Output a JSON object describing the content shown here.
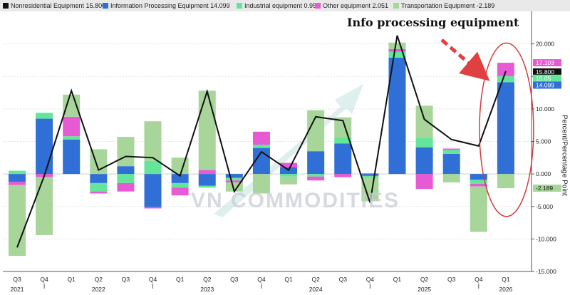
{
  "chart_data": {
    "type": "bar",
    "stacked": true,
    "annotation": "Info processing equipment",
    "watermark": "VN COMMODITIES",
    "ylabel": "Percent/Percentage Point",
    "ylim": [
      -15,
      25
    ],
    "yticks": [
      -15,
      -10,
      -5,
      0,
      5,
      10,
      15,
      20
    ],
    "ytick_labels": [
      "-15.000",
      "-10.000",
      "-5.000",
      "0.000",
      "5.000",
      "10.000",
      "15.000",
      "20.000"
    ],
    "grid": true,
    "legend_position": "top",
    "quarter_labels": [
      "Q3",
      "Q4",
      "Q1",
      "Q2",
      "Q3",
      "Q4",
      "Q1",
      "Q2",
      "Q3",
      "Q4",
      "Q1",
      "Q2",
      "Q3",
      "Q4",
      "Q1",
      "Q2",
      "Q3",
      "Q4",
      "Q1"
    ],
    "year_labels": [
      {
        "label": "2021",
        "index": 0
      },
      {
        "label": "2022",
        "index": 3
      },
      {
        "label": "2023",
        "index": 7
      },
      {
        "label": "2024",
        "index": 11
      },
      {
        "label": "2025",
        "index": 15
      },
      {
        "label": "2026",
        "index": 18
      }
    ],
    "legend": [
      {
        "name": "Nonresidential Equipment",
        "value": "15.800",
        "color": "#111111"
      },
      {
        "name": "Information Processing Equipment",
        "value": "14.099",
        "color": "#2f6fd6"
      },
      {
        "name": "Industrial equipment",
        "value": "0.953",
        "color": "#63e59a"
      },
      {
        "name": "Other equipment",
        "value": "2.051",
        "color": "#e65ad3"
      },
      {
        "name": "Transportation Equipment",
        "value": "-2.189",
        "color": "#a7d59a"
      }
    ],
    "line": {
      "name": "Nonresidential Equipment",
      "values": [
        -11.3,
        -0.3,
        12.8,
        0.6,
        2.7,
        2.5,
        -0.3,
        12.7,
        -2.7,
        3.4,
        0.6,
        8.8,
        8.2,
        -4.4,
        21.3,
        8.4,
        5.3,
        4.3,
        15.8
      ]
    },
    "bar_series": [
      {
        "name": "Information Processing Equipment",
        "color": "#2f6fd6",
        "values": [
          -1.2,
          8.5,
          5.3,
          -1.4,
          1.2,
          -5.1,
          -1.4,
          -1.8,
          -0.6,
          4.0,
          1.0,
          3.5,
          4.7,
          -0.3,
          17.9,
          4.1,
          3.1,
          -0.9,
          14.1
        ]
      },
      {
        "name": "Industrial equipment",
        "color": "#63e59a",
        "values": [
          0.5,
          0.9,
          0.5,
          -1.3,
          -1.4,
          2.0,
          -0.7,
          -0.3,
          -0.4,
          0.5,
          -0.4,
          -0.4,
          0.9,
          -0.3,
          0.9,
          1.4,
          0.6,
          -0.6,
          0.95
        ]
      },
      {
        "name": "Other equipment",
        "color": "#e65ad3",
        "values": [
          -0.5,
          -0.5,
          3.0,
          -0.3,
          -1.3,
          -0.2,
          -1.2,
          0.6,
          -0.3,
          2.0,
          0.7,
          -0.6,
          -0.5,
          0.1,
          0.4,
          -2.3,
          0.2,
          -0.4,
          2.05
        ]
      },
      {
        "name": "Transportation Equipment",
        "color": "#a7d59a",
        "values": [
          -10.9,
          -8.9,
          3.4,
          3.8,
          4.5,
          6.1,
          2.5,
          12.2,
          -1.4,
          -3.0,
          -1.2,
          6.3,
          3.1,
          -3.6,
          1.0,
          5.0,
          -1.3,
          -7.0,
          -2.189
        ]
      }
    ],
    "callouts": [
      {
        "label": "17.103",
        "value": 17.103,
        "color": "#e65ad3",
        "text_color": "#ffffff"
      },
      {
        "label": "15.800",
        "value": 15.8,
        "color": "#111111",
        "text_color": "#ffffff"
      },
      {
        "label": "15.05",
        "value": 15.05,
        "color": "#63e59a",
        "text_color": "#ffffff"
      },
      {
        "label": "14.099",
        "value": 14.099,
        "color": "#2f6fd6",
        "text_color": "#ffffff"
      },
      {
        "label": "-2.189",
        "value": -2.189,
        "color": "#a7d59a",
        "text_color": "#111111"
      }
    ]
  }
}
